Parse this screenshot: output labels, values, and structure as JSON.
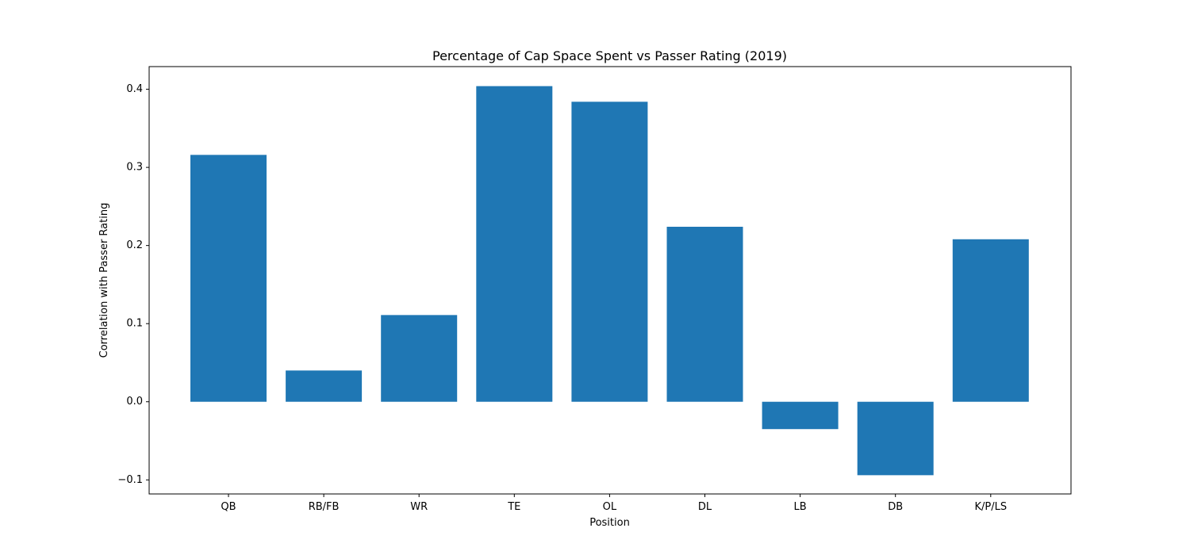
{
  "chart_data": {
    "type": "bar",
    "title": "Percentage of Cap Space Spent vs Passer Rating (2019)",
    "xlabel": "Position",
    "ylabel": "Correlation with Passer Rating",
    "categories": [
      "QB",
      "RB/FB",
      "WR",
      "TE",
      "OL",
      "DL",
      "LB",
      "DB",
      "K/P/LS"
    ],
    "values": [
      0.316,
      0.04,
      0.111,
      0.404,
      0.384,
      0.224,
      -0.035,
      -0.094,
      0.208
    ],
    "ylim": [
      -0.118,
      0.429
    ],
    "yticks": [
      -0.1,
      0.0,
      0.1,
      0.2,
      0.3,
      0.4
    ],
    "ytick_labels": [
      "−0.1",
      "0.0",
      "0.1",
      "0.2",
      "0.3",
      "0.4"
    ],
    "bar_color": "#1f77b4",
    "grid": false,
    "legend": false
  }
}
